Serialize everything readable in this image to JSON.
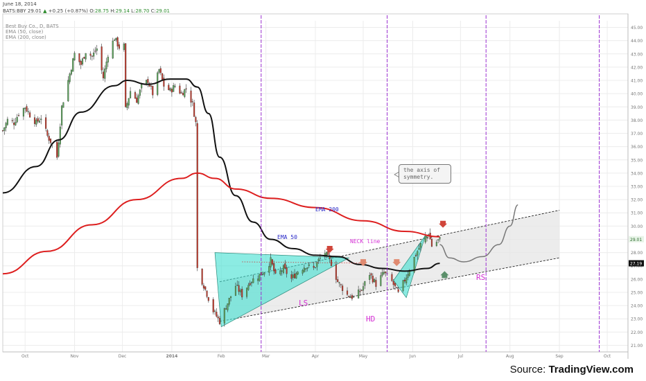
{
  "header": {
    "date": "June 18, 2014",
    "ticker": "BATS:BBY",
    "last": "29.01",
    "change": "+0.25 (+0.87%)",
    "open": "28.75",
    "high": "29.14",
    "low": "28.70",
    "close": "29.01"
  },
  "legend": {
    "symbol_desc": "Best Buy Co., D, BATS",
    "ema50": "EMA (50, close)",
    "ema200": "EMA (200, close)"
  },
  "annotations": {
    "callout": [
      "the axis of",
      "symmetry."
    ],
    "ema200_label": "EMA 200",
    "ema50_label": "EMA 50",
    "neck_label": "NECK line",
    "ls": "LS",
    "hd": "HD",
    "rs": "RS"
  },
  "price_tags": {
    "last": "29.01",
    "ema_tag": "27.19"
  },
  "source": {
    "prefix": "Source: ",
    "brand": "TradingView.com"
  },
  "colors": {
    "up_candle": "#5ba35b",
    "down_candle": "#c0392b",
    "ema50": "#111111",
    "ema200": "#dd1e1e",
    "triangle_fill": "#40e0d0",
    "channel_fill": "#e6e6e6",
    "vline": "#9b30d0",
    "label_blue": "#2a2ac8",
    "label_magenta": "#d42fd4",
    "arrow_down": "#d0453a",
    "arrow_down_light": "#e08a70",
    "arrow_up": "#5b8f6a"
  },
  "chart_data": {
    "type": "candlestick",
    "title": "Best Buy Co., D, BATS",
    "y_axis": {
      "range": [
        20.5,
        45.5
      ],
      "ticks": [
        21,
        22,
        23,
        24,
        25,
        26,
        27,
        28,
        29,
        30,
        31,
        32,
        33,
        34,
        35,
        36,
        37,
        38,
        39,
        40,
        41,
        42,
        43,
        44,
        45
      ]
    },
    "x_axis": {
      "range": [
        "2013-09-17",
        "2014-10-14"
      ],
      "ticks": [
        {
          "label": "Oct",
          "date": "2013-10-01"
        },
        {
          "label": "Nov",
          "date": "2013-11-01"
        },
        {
          "label": "Dec",
          "date": "2013-12-01"
        },
        {
          "label": "2014",
          "date": "2014-01-01"
        },
        {
          "label": "Feb",
          "date": "2014-02-01"
        },
        {
          "label": "Mar",
          "date": "2014-03-01"
        },
        {
          "label": "Apr",
          "date": "2014-04-01"
        },
        {
          "label": "May",
          "date": "2014-05-01"
        },
        {
          "label": "Jun",
          "date": "2014-06-01"
        },
        {
          "label": "Jul",
          "date": "2014-07-01"
        },
        {
          "label": "Aug",
          "date": "2014-08-01"
        },
        {
          "label": "Sep",
          "date": "2014-09-01"
        },
        {
          "label": "Oct",
          "date": "2014-10-01"
        }
      ]
    },
    "price_path": [
      [
        "2013-09-17",
        37.2
      ],
      [
        "2013-09-20",
        38.0
      ],
      [
        "2013-09-24",
        37.8
      ],
      [
        "2013-09-27",
        38.5
      ],
      [
        "2013-10-01",
        39.0
      ],
      [
        "2013-10-04",
        38.4
      ],
      [
        "2013-10-08",
        37.8
      ],
      [
        "2013-10-11",
        38.2
      ],
      [
        "2013-10-15",
        36.8
      ],
      [
        "2013-10-18",
        36.2
      ],
      [
        "2013-10-21",
        35.2
      ],
      [
        "2013-10-24",
        39.0
      ],
      [
        "2013-10-28",
        41.0
      ],
      [
        "2013-11-01",
        43.0
      ],
      [
        "2013-11-05",
        42.2
      ],
      [
        "2013-11-08",
        43.2
      ],
      [
        "2013-11-12",
        42.8
      ],
      [
        "2013-11-15",
        43.4
      ],
      [
        "2013-11-19",
        41.2
      ],
      [
        "2013-11-22",
        43.0
      ],
      [
        "2013-11-26",
        44.2
      ],
      [
        "2013-11-29",
        43.5
      ],
      [
        "2013-12-02",
        43.6
      ],
      [
        "2013-12-03",
        38.8
      ],
      [
        "2013-12-06",
        40.2
      ],
      [
        "2013-12-10",
        39.5
      ],
      [
        "2013-12-13",
        40.5
      ],
      [
        "2013-12-17",
        41.0
      ],
      [
        "2013-12-20",
        40.0
      ],
      [
        "2013-12-24",
        41.8
      ],
      [
        "2013-12-27",
        40.6
      ],
      [
        "2013-12-31",
        40.2
      ],
      [
        "2014-01-03",
        40.6
      ],
      [
        "2014-01-07",
        40.0
      ],
      [
        "2014-01-10",
        40.4
      ],
      [
        "2014-01-14",
        39.2
      ],
      [
        "2014-01-16",
        37.8
      ],
      [
        "2014-01-17",
        26.8
      ],
      [
        "2014-01-22",
        25.2
      ],
      [
        "2014-01-27",
        23.6
      ],
      [
        "2014-01-31",
        22.8
      ],
      [
        "2014-02-05",
        24.2
      ],
      [
        "2014-02-10",
        25.5
      ],
      [
        "2014-02-14",
        24.8
      ],
      [
        "2014-02-19",
        25.8
      ],
      [
        "2014-02-24",
        26.2
      ],
      [
        "2014-02-28",
        26.6
      ],
      [
        "2014-03-04",
        27.4
      ],
      [
        "2014-03-07",
        26.2
      ],
      [
        "2014-03-12",
        26.8
      ],
      [
        "2014-03-17",
        26.0
      ],
      [
        "2014-03-21",
        26.6
      ],
      [
        "2014-03-26",
        27.0
      ],
      [
        "2014-03-31",
        26.8
      ],
      [
        "2014-04-03",
        27.4
      ],
      [
        "2014-04-07",
        28.0
      ],
      [
        "2014-04-11",
        27.2
      ],
      [
        "2014-04-15",
        25.8
      ],
      [
        "2014-04-21",
        24.8
      ],
      [
        "2014-04-25",
        24.6
      ],
      [
        "2014-04-30",
        25.2
      ],
      [
        "2014-05-05",
        26.4
      ],
      [
        "2014-05-09",
        25.6
      ],
      [
        "2014-05-14",
        26.5
      ],
      [
        "2014-05-19",
        25.8
      ],
      [
        "2014-05-23",
        24.9
      ],
      [
        "2014-05-28",
        26.2
      ],
      [
        "2014-06-02",
        27.6
      ],
      [
        "2014-06-06",
        28.6
      ],
      [
        "2014-06-11",
        29.5
      ],
      [
        "2014-06-13",
        28.5
      ],
      [
        "2014-06-18",
        29.01
      ]
    ],
    "series": [
      {
        "name": "EMA (50, close)",
        "label": "EMA 50",
        "points": [
          [
            "2013-09-17",
            32.5
          ],
          [
            "2013-10-08",
            34.5
          ],
          [
            "2013-10-22",
            36.5
          ],
          [
            "2013-11-05",
            38.6
          ],
          [
            "2013-11-26",
            40.6
          ],
          [
            "2013-12-04",
            41.0
          ],
          [
            "2013-12-17",
            40.7
          ],
          [
            "2013-12-31",
            41.1
          ],
          [
            "2014-01-10",
            41.1
          ],
          [
            "2014-01-17",
            40.5
          ],
          [
            "2014-01-24",
            38.5
          ],
          [
            "2014-01-31",
            35.2
          ],
          [
            "2014-02-10",
            32.3
          ],
          [
            "2014-02-21",
            30.3
          ],
          [
            "2014-03-04",
            29.0
          ],
          [
            "2014-03-18",
            28.3
          ],
          [
            "2014-04-01",
            27.8
          ],
          [
            "2014-04-15",
            27.7
          ],
          [
            "2014-04-29",
            27.1
          ],
          [
            "2014-05-13",
            26.8
          ],
          [
            "2014-05-27",
            26.6
          ],
          [
            "2014-06-10",
            26.8
          ],
          [
            "2014-06-18",
            27.19
          ]
        ]
      },
      {
        "name": "EMA (200, close)",
        "label": "EMA 200",
        "points": [
          [
            "2013-09-17",
            26.4
          ],
          [
            "2013-10-15",
            28.1
          ],
          [
            "2013-11-12",
            30.1
          ],
          [
            "2013-12-10",
            32.0
          ],
          [
            "2014-01-07",
            33.6
          ],
          [
            "2014-01-17",
            34.0
          ],
          [
            "2014-01-28",
            33.6
          ],
          [
            "2014-02-10",
            32.8
          ],
          [
            "2014-03-04",
            32.1
          ],
          [
            "2014-04-01",
            31.4
          ],
          [
            "2014-05-01",
            30.4
          ],
          [
            "2014-05-27",
            29.6
          ],
          [
            "2014-06-18",
            29.2
          ]
        ]
      }
    ],
    "drawings": {
      "channel_upper": [
        [
          "2014-01-31",
          25.8
        ],
        [
          "2014-09-01",
          31.2
        ]
      ],
      "channel_lower": [
        [
          "2014-01-31",
          22.8
        ],
        [
          "2014-09-01",
          27.6
        ]
      ],
      "neck_line": [
        [
          "2014-02-14",
          27.3
        ],
        [
          "2014-05-01",
          27.2
        ]
      ],
      "projection": [
        [
          "2014-06-18",
          28.6
        ],
        [
          "2014-06-24",
          27.6
        ],
        [
          "2014-07-03",
          27.3
        ],
        [
          "2014-07-15",
          27.7
        ],
        [
          "2014-07-25",
          28.6
        ],
        [
          "2014-08-01",
          30.0
        ],
        [
          "2014-08-06",
          31.6
        ]
      ],
      "vertical_lines": [
        "2014-02-26",
        "2014-05-16",
        "2014-07-17",
        "2014-09-26"
      ]
    },
    "last_price": 29.01,
    "grid": true
  }
}
